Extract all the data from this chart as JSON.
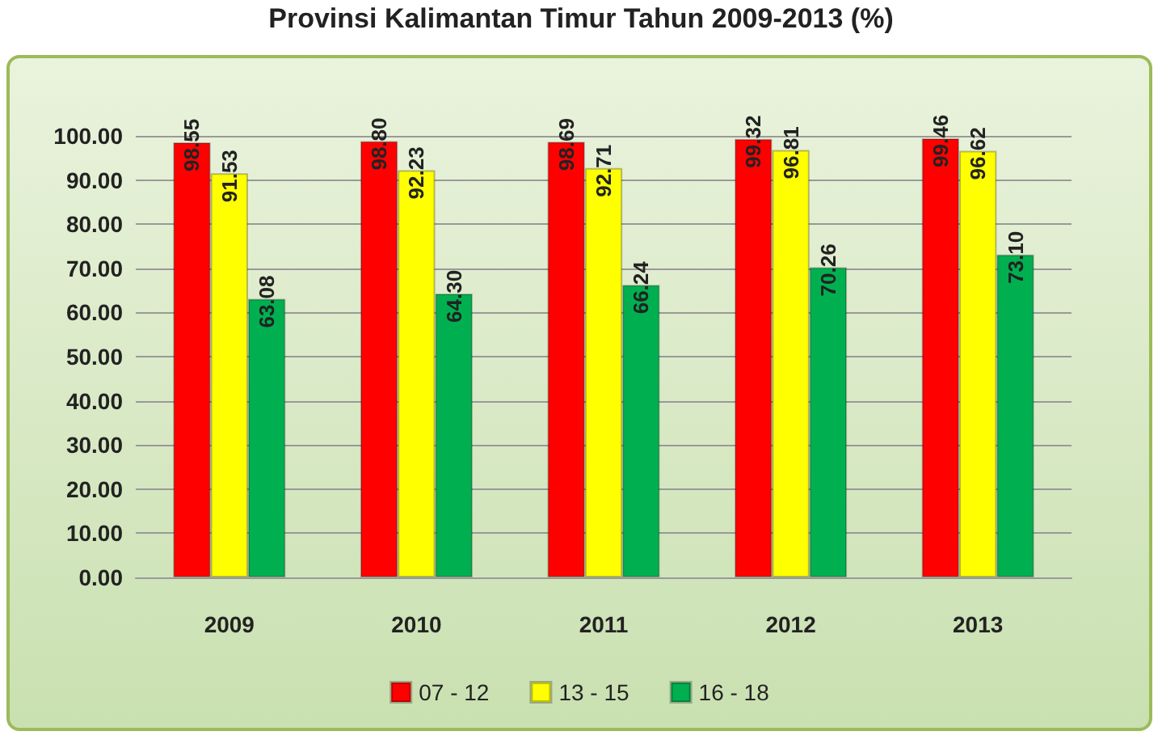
{
  "chart_data": {
    "type": "bar",
    "title": "Provinsi Kalimantan Timur Tahun 2009-2013 (%)",
    "categories": [
      "2009",
      "2010",
      "2011",
      "2012",
      "2013"
    ],
    "series": [
      {
        "name": "07 - 12",
        "color": "#ff0000",
        "values": [
          98.55,
          98.8,
          98.69,
          99.32,
          99.46
        ],
        "value_labels": [
          "98.55",
          "98.80",
          "98.69",
          "99.32",
          "99.46"
        ]
      },
      {
        "name": "13 - 15",
        "color": "#ffff00",
        "values": [
          91.53,
          92.23,
          92.71,
          96.81,
          96.62
        ],
        "value_labels": [
          "91.53",
          "92.23",
          "92.71",
          "96.81",
          "96.62"
        ]
      },
      {
        "name": "16 - 18",
        "color": "#00b050",
        "values": [
          63.08,
          64.3,
          66.24,
          70.26,
          73.1
        ],
        "value_labels": [
          "63.08",
          "64.30",
          "66.24",
          "70.26",
          "73.10"
        ]
      }
    ],
    "ylim": [
      0,
      100
    ],
    "yticks": [
      {
        "value": 0,
        "label": "0.00"
      },
      {
        "value": 10,
        "label": "10.00"
      },
      {
        "value": 20,
        "label": "20.00"
      },
      {
        "value": 30,
        "label": "30.00"
      },
      {
        "value": 40,
        "label": "40.00"
      },
      {
        "value": 50,
        "label": "50.00"
      },
      {
        "value": 60,
        "label": "60.00"
      },
      {
        "value": 70,
        "label": "70.00"
      },
      {
        "value": 80,
        "label": "80.00"
      },
      {
        "value": 90,
        "label": "90.00"
      },
      {
        "value": 100,
        "label": "100.00"
      }
    ],
    "grid": "y",
    "legend": "bottom"
  }
}
